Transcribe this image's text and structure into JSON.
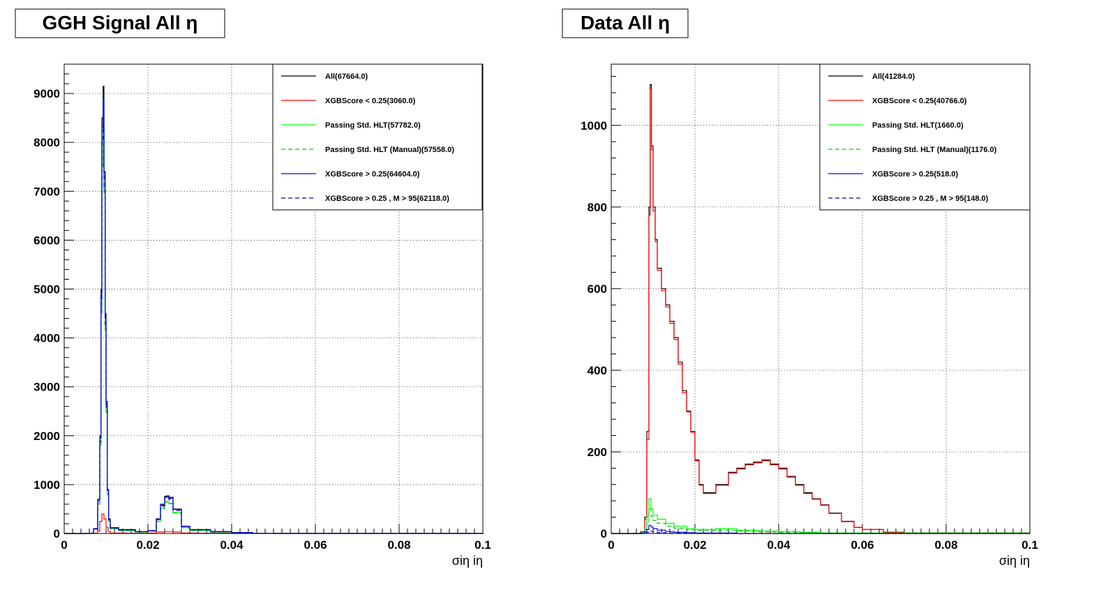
{
  "chart_data": [
    {
      "type": "line",
      "title": "GGH Signal All η",
      "xlabel": "σiη iη",
      "xlim": [
        0,
        0.1
      ],
      "ylim": [
        0,
        9600
      ],
      "x_ticks": [
        "0",
        "0.02",
        "0.04",
        "0.06",
        "0.08",
        "0.1"
      ],
      "y_ticks": [
        "0",
        "1000",
        "2000",
        "3000",
        "4000",
        "5000",
        "6000",
        "7000",
        "8000",
        "9000"
      ],
      "grid": true,
      "legend_position": "top-right",
      "series": [
        {
          "name": "All(67664.0)",
          "color": "#000000",
          "dash": "solid",
          "x": [
            0,
            0.005,
            0.007,
            0.008,
            0.0085,
            0.0088,
            0.009,
            0.0093,
            0.0095,
            0.0098,
            0.01,
            0.0103,
            0.0106,
            0.011,
            0.013,
            0.017,
            0.02,
            0.022,
            0.023,
            0.024,
            0.0245,
            0.025,
            0.026,
            0.028,
            0.03,
            0.035,
            0.04,
            0.045,
            0.05,
            0.1
          ],
          "y": [
            0,
            5,
            100,
            700,
            2000,
            5000,
            8500,
            9150,
            7400,
            4500,
            2700,
            900,
            300,
            120,
            80,
            40,
            60,
            300,
            600,
            760,
            770,
            740,
            500,
            150,
            80,
            40,
            20,
            5,
            0,
            0
          ]
        },
        {
          "name": "XGBScore < 0.25(3060.0)",
          "color": "#ff0000",
          "dash": "solid",
          "x": [
            0,
            0.007,
            0.008,
            0.0085,
            0.009,
            0.0095,
            0.01,
            0.0105,
            0.011,
            0.015,
            0.02,
            0.022,
            0.024,
            0.026,
            0.028,
            0.032,
            0.1
          ],
          "y": [
            0,
            5,
            50,
            250,
            400,
            300,
            120,
            40,
            10,
            5,
            10,
            30,
            40,
            30,
            10,
            5,
            0
          ]
        },
        {
          "name": "Passing Std. HLT(57782.0)",
          "color": "#00ff00",
          "dash": "solid",
          "x": [
            0,
            0.005,
            0.007,
            0.008,
            0.0085,
            0.0088,
            0.009,
            0.0093,
            0.0095,
            0.0098,
            0.01,
            0.0103,
            0.0106,
            0.011,
            0.013,
            0.017,
            0.02,
            0.022,
            0.023,
            0.024,
            0.0245,
            0.025,
            0.026,
            0.028,
            0.03,
            0.035,
            0.04,
            0.045,
            0.1
          ],
          "y": [
            0,
            5,
            90,
            600,
            1800,
            4500,
            7500,
            8300,
            7000,
            4200,
            2500,
            800,
            260,
            100,
            60,
            30,
            50,
            250,
            520,
            650,
            660,
            620,
            430,
            120,
            60,
            30,
            15,
            3,
            0
          ]
        },
        {
          "name": "Passing Std. HLT (Manual)(57558.0)",
          "color": "#00cc00",
          "dash": "dashed",
          "x": [
            0,
            0.005,
            0.007,
            0.008,
            0.0085,
            0.0088,
            0.009,
            0.0093,
            0.0095,
            0.0098,
            0.01,
            0.0103,
            0.0106,
            0.011,
            0.013,
            0.017,
            0.02,
            0.022,
            0.023,
            0.024,
            0.0245,
            0.025,
            0.026,
            0.028,
            0.03,
            0.035,
            0.04,
            0.045,
            0.1
          ],
          "y": [
            0,
            5,
            90,
            600,
            1800,
            4500,
            7500,
            8250,
            6950,
            4150,
            2480,
            790,
            255,
            100,
            60,
            30,
            50,
            245,
            510,
            640,
            650,
            610,
            420,
            118,
            58,
            28,
            14,
            3,
            0
          ]
        },
        {
          "name": "XGBScore > 0.25(64604.0)",
          "color": "#0000ff",
          "dash": "solid",
          "x": [
            0,
            0.005,
            0.007,
            0.008,
            0.0085,
            0.0088,
            0.009,
            0.0093,
            0.0095,
            0.0098,
            0.01,
            0.0103,
            0.0106,
            0.011,
            0.013,
            0.017,
            0.02,
            0.022,
            0.023,
            0.024,
            0.0245,
            0.025,
            0.026,
            0.028,
            0.03,
            0.035,
            0.04,
            0.045,
            0.1
          ],
          "y": [
            0,
            5,
            95,
            680,
            1950,
            4900,
            8300,
            8900,
            7300,
            4400,
            2650,
            880,
            290,
            115,
            75,
            38,
            55,
            290,
            580,
            740,
            750,
            720,
            490,
            145,
            78,
            38,
            18,
            4,
            0
          ]
        },
        {
          "name": "XGBScore > 0.25 , M > 95(62118.0)",
          "color": "#0000cc",
          "dash": "dashed",
          "x": [
            0,
            0.005,
            0.007,
            0.008,
            0.0085,
            0.0088,
            0.009,
            0.0093,
            0.0095,
            0.0098,
            0.01,
            0.0103,
            0.0106,
            0.011,
            0.013,
            0.017,
            0.02,
            0.022,
            0.023,
            0.024,
            0.0245,
            0.025,
            0.026,
            0.028,
            0.03,
            0.035,
            0.04,
            0.045,
            0.1
          ],
          "y": [
            0,
            5,
            90,
            650,
            1880,
            4750,
            8000,
            8600,
            7050,
            4250,
            2560,
            850,
            280,
            110,
            72,
            36,
            52,
            280,
            560,
            715,
            725,
            695,
            470,
            140,
            75,
            36,
            17,
            4,
            0
          ]
        }
      ]
    },
    {
      "type": "line",
      "title": "Data All η",
      "xlabel": "σiη iη",
      "xlim": [
        0,
        0.1
      ],
      "ylim": [
        0,
        1150
      ],
      "x_ticks": [
        "0",
        "0.02",
        "0.04",
        "0.06",
        "0.08",
        "0.1"
      ],
      "y_ticks": [
        "0",
        "200",
        "400",
        "600",
        "800",
        "1000"
      ],
      "grid": true,
      "legend_position": "top-right",
      "series": [
        {
          "name": "All(41284.0)",
          "color": "#000000",
          "dash": "solid",
          "x": [
            0,
            0.007,
            0.008,
            0.0085,
            0.009,
            0.0093,
            0.0096,
            0.01,
            0.0105,
            0.011,
            0.012,
            0.013,
            0.014,
            0.015,
            0.016,
            0.017,
            0.018,
            0.019,
            0.02,
            0.021,
            0.022,
            0.025,
            0.028,
            0.03,
            0.032,
            0.034,
            0.036,
            0.038,
            0.04,
            0.042,
            0.044,
            0.046,
            0.048,
            0.05,
            0.052,
            0.055,
            0.058,
            0.06,
            0.065,
            0.07,
            0.1
          ],
          "y": [
            0,
            5,
            40,
            250,
            800,
            1100,
            950,
            800,
            720,
            650,
            600,
            560,
            520,
            480,
            420,
            350,
            300,
            250,
            180,
            120,
            100,
            120,
            150,
            160,
            170,
            175,
            180,
            170,
            160,
            140,
            120,
            100,
            85,
            70,
            50,
            30,
            15,
            10,
            3,
            1,
            0
          ]
        },
        {
          "name": "XGBScore < 0.25(40766.0)",
          "color": "#ff0000",
          "dash": "solid",
          "x": [
            0,
            0.007,
            0.008,
            0.0085,
            0.009,
            0.0093,
            0.0096,
            0.01,
            0.0105,
            0.011,
            0.012,
            0.013,
            0.014,
            0.015,
            0.016,
            0.017,
            0.018,
            0.019,
            0.02,
            0.021,
            0.022,
            0.025,
            0.028,
            0.03,
            0.032,
            0.034,
            0.036,
            0.038,
            0.04,
            0.042,
            0.044,
            0.046,
            0.048,
            0.05,
            0.052,
            0.055,
            0.058,
            0.06,
            0.065,
            0.07,
            0.1
          ],
          "y": [
            0,
            5,
            35,
            230,
            780,
            1090,
            940,
            790,
            715,
            645,
            595,
            555,
            515,
            475,
            415,
            345,
            298,
            248,
            178,
            118,
            98,
            118,
            148,
            158,
            168,
            173,
            178,
            168,
            158,
            138,
            118,
            98,
            84,
            69,
            49,
            29,
            15,
            10,
            3,
            1,
            0
          ]
        },
        {
          "name": "Passing Std. HLT(1660.0)",
          "color": "#00ff00",
          "dash": "solid",
          "x": [
            0,
            0.007,
            0.008,
            0.0085,
            0.009,
            0.0095,
            0.01,
            0.011,
            0.013,
            0.015,
            0.018,
            0.02,
            0.025,
            0.03,
            0.035,
            0.04,
            0.045,
            0.05,
            0.1
          ],
          "y": [
            0,
            2,
            10,
            40,
            85,
            60,
            45,
            35,
            25,
            18,
            12,
            10,
            12,
            8,
            6,
            5,
            3,
            1,
            0
          ]
        },
        {
          "name": "Passing Std. HLT (Manual)(1176.0)",
          "color": "#00cc00",
          "dash": "dashed",
          "x": [
            0,
            0.007,
            0.008,
            0.0085,
            0.009,
            0.0095,
            0.01,
            0.011,
            0.013,
            0.015,
            0.018,
            0.02,
            0.025,
            0.03,
            0.035,
            0.04,
            0.045,
            0.05,
            0.1
          ],
          "y": [
            0,
            2,
            8,
            28,
            60,
            42,
            32,
            25,
            18,
            13,
            9,
            7,
            8,
            6,
            4,
            3,
            2,
            1,
            0
          ]
        },
        {
          "name": "XGBScore > 0.25(518.0)",
          "color": "#0000ff",
          "dash": "solid",
          "x": [
            0,
            0.007,
            0.008,
            0.0085,
            0.009,
            0.0095,
            0.01,
            0.011,
            0.013,
            0.015,
            0.018,
            0.02,
            0.025,
            0.03,
            0.1
          ],
          "y": [
            0,
            1,
            4,
            10,
            20,
            16,
            12,
            8,
            5,
            3,
            2,
            1,
            1,
            0,
            0
          ]
        },
        {
          "name": "XGBScore > 0.25 , M > 95(148.0)",
          "color": "#0000cc",
          "dash": "dashed",
          "x": [
            0,
            0.007,
            0.008,
            0.0085,
            0.009,
            0.0095,
            0.01,
            0.011,
            0.013,
            0.015,
            0.02,
            0.1
          ],
          "y": [
            0,
            0,
            1,
            3,
            6,
            5,
            4,
            2,
            1,
            1,
            0,
            0
          ]
        }
      ]
    }
  ]
}
